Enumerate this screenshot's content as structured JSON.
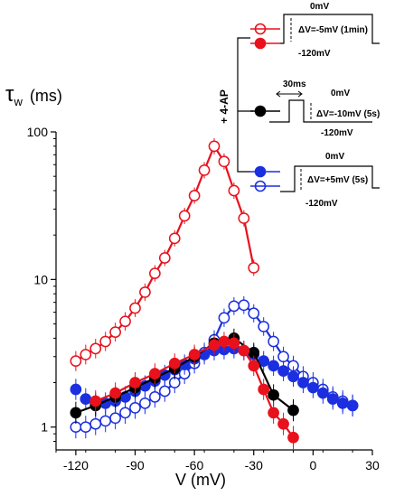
{
  "chart_data": {
    "type": "scatter",
    "ylabel_symbol": "τ",
    "ylabel_sub": "w",
    "ylabel_unit": "(ms)",
    "xlabel": "V (mV)",
    "xlim": [
      -130,
      30
    ],
    "ylim": [
      0.7,
      100
    ],
    "yscale": "log",
    "xticks": [
      -120,
      -90,
      -60,
      -30,
      0,
      30
    ],
    "xtick_labels": [
      "-120",
      "-90",
      "-60",
      "-30",
      "0",
      "30"
    ],
    "yticks": [
      1,
      10,
      100
    ],
    "ytick_labels": [
      "1",
      "10",
      "100"
    ],
    "series": [
      {
        "key": "red_open",
        "color": "#e8111c",
        "fill": "open",
        "connected": true,
        "x": [
          -120,
          -115,
          -110,
          -105,
          -100,
          -95,
          -90,
          -85,
          -80,
          -75,
          -70,
          -65,
          -60,
          -55,
          -50,
          -45,
          -40,
          -35,
          -30
        ],
        "y": [
          2.8,
          3.1,
          3.4,
          3.8,
          4.4,
          5.2,
          6.4,
          8.2,
          11,
          14,
          19,
          27,
          37,
          55,
          80,
          63,
          40,
          26,
          12
        ]
      },
      {
        "key": "red_filled",
        "color": "#e8111c",
        "fill": "filled",
        "connected": true,
        "x": [
          -110,
          -100,
          -90,
          -80,
          -70,
          -60,
          -50,
          -45,
          -40,
          -35,
          -30,
          -25,
          -20,
          -15,
          -10
        ],
        "y": [
          1.5,
          1.7,
          2.0,
          2.3,
          2.7,
          3.1,
          3.6,
          3.8,
          3.7,
          3.3,
          2.6,
          1.8,
          1.25,
          1.05,
          0.85
        ]
      },
      {
        "key": "black_filled",
        "color": "#000000",
        "fill": "filled",
        "connected": true,
        "x": [
          -120,
          -110,
          -100,
          -90,
          -80,
          -70,
          -60,
          -50,
          -40,
          -30,
          -20,
          -10
        ],
        "y": [
          1.25,
          1.4,
          1.6,
          1.85,
          2.15,
          2.5,
          3.0,
          3.7,
          4.0,
          3.2,
          1.65,
          1.3
        ]
      },
      {
        "key": "blue_filled",
        "color": "#1b2fe0",
        "fill": "filled",
        "connected": false,
        "x": [
          -120,
          -115,
          -110,
          -105,
          -100,
          -95,
          -90,
          -85,
          -80,
          -75,
          -70,
          -65,
          -60,
          -55,
          -50,
          -45,
          -40,
          -35,
          -30,
          -25,
          -20,
          -15,
          -10,
          -5,
          0,
          5,
          10,
          15,
          20
        ],
        "y": [
          1.8,
          1.55,
          1.45,
          1.45,
          1.5,
          1.6,
          1.75,
          1.9,
          2.05,
          2.25,
          2.45,
          2.65,
          2.9,
          3.1,
          3.3,
          3.35,
          3.4,
          3.3,
          3.1,
          2.8,
          2.6,
          2.4,
          2.2,
          2.0,
          1.85,
          1.7,
          1.55,
          1.45,
          1.4
        ]
      },
      {
        "key": "blue_open",
        "color": "#1b2fe0",
        "fill": "open",
        "connected": true,
        "x": [
          -120,
          -115,
          -110,
          -105,
          -100,
          -95,
          -90,
          -85,
          -80,
          -75,
          -70,
          -65,
          -60,
          -55,
          -50,
          -45,
          -40,
          -35,
          -30,
          -25,
          -20,
          -15,
          -10,
          -5,
          0,
          5,
          10,
          15,
          20
        ],
        "y": [
          1.0,
          1.0,
          1.05,
          1.1,
          1.15,
          1.25,
          1.35,
          1.45,
          1.6,
          1.75,
          2.0,
          2.3,
          2.7,
          3.2,
          3.9,
          5.5,
          6.6,
          6.7,
          5.9,
          4.8,
          3.8,
          3.0,
          2.6,
          2.2,
          2.0,
          1.8,
          1.6,
          1.5,
          1.4
        ]
      }
    ],
    "inset": {
      "group_label": "+ 4-AP",
      "prot1": {
        "top": "0mV",
        "step": "ΔV=-5mV (1min)",
        "bottom": "-120mV"
      },
      "prot2": {
        "pre": "30ms",
        "top": "0mV",
        "step": "ΔV=-10mV (5s)",
        "bottom": "-120mV"
      },
      "prot3": {
        "top": "0mV",
        "step": "ΔV=+5mV (5s)",
        "bottom": "-120mV"
      }
    }
  }
}
